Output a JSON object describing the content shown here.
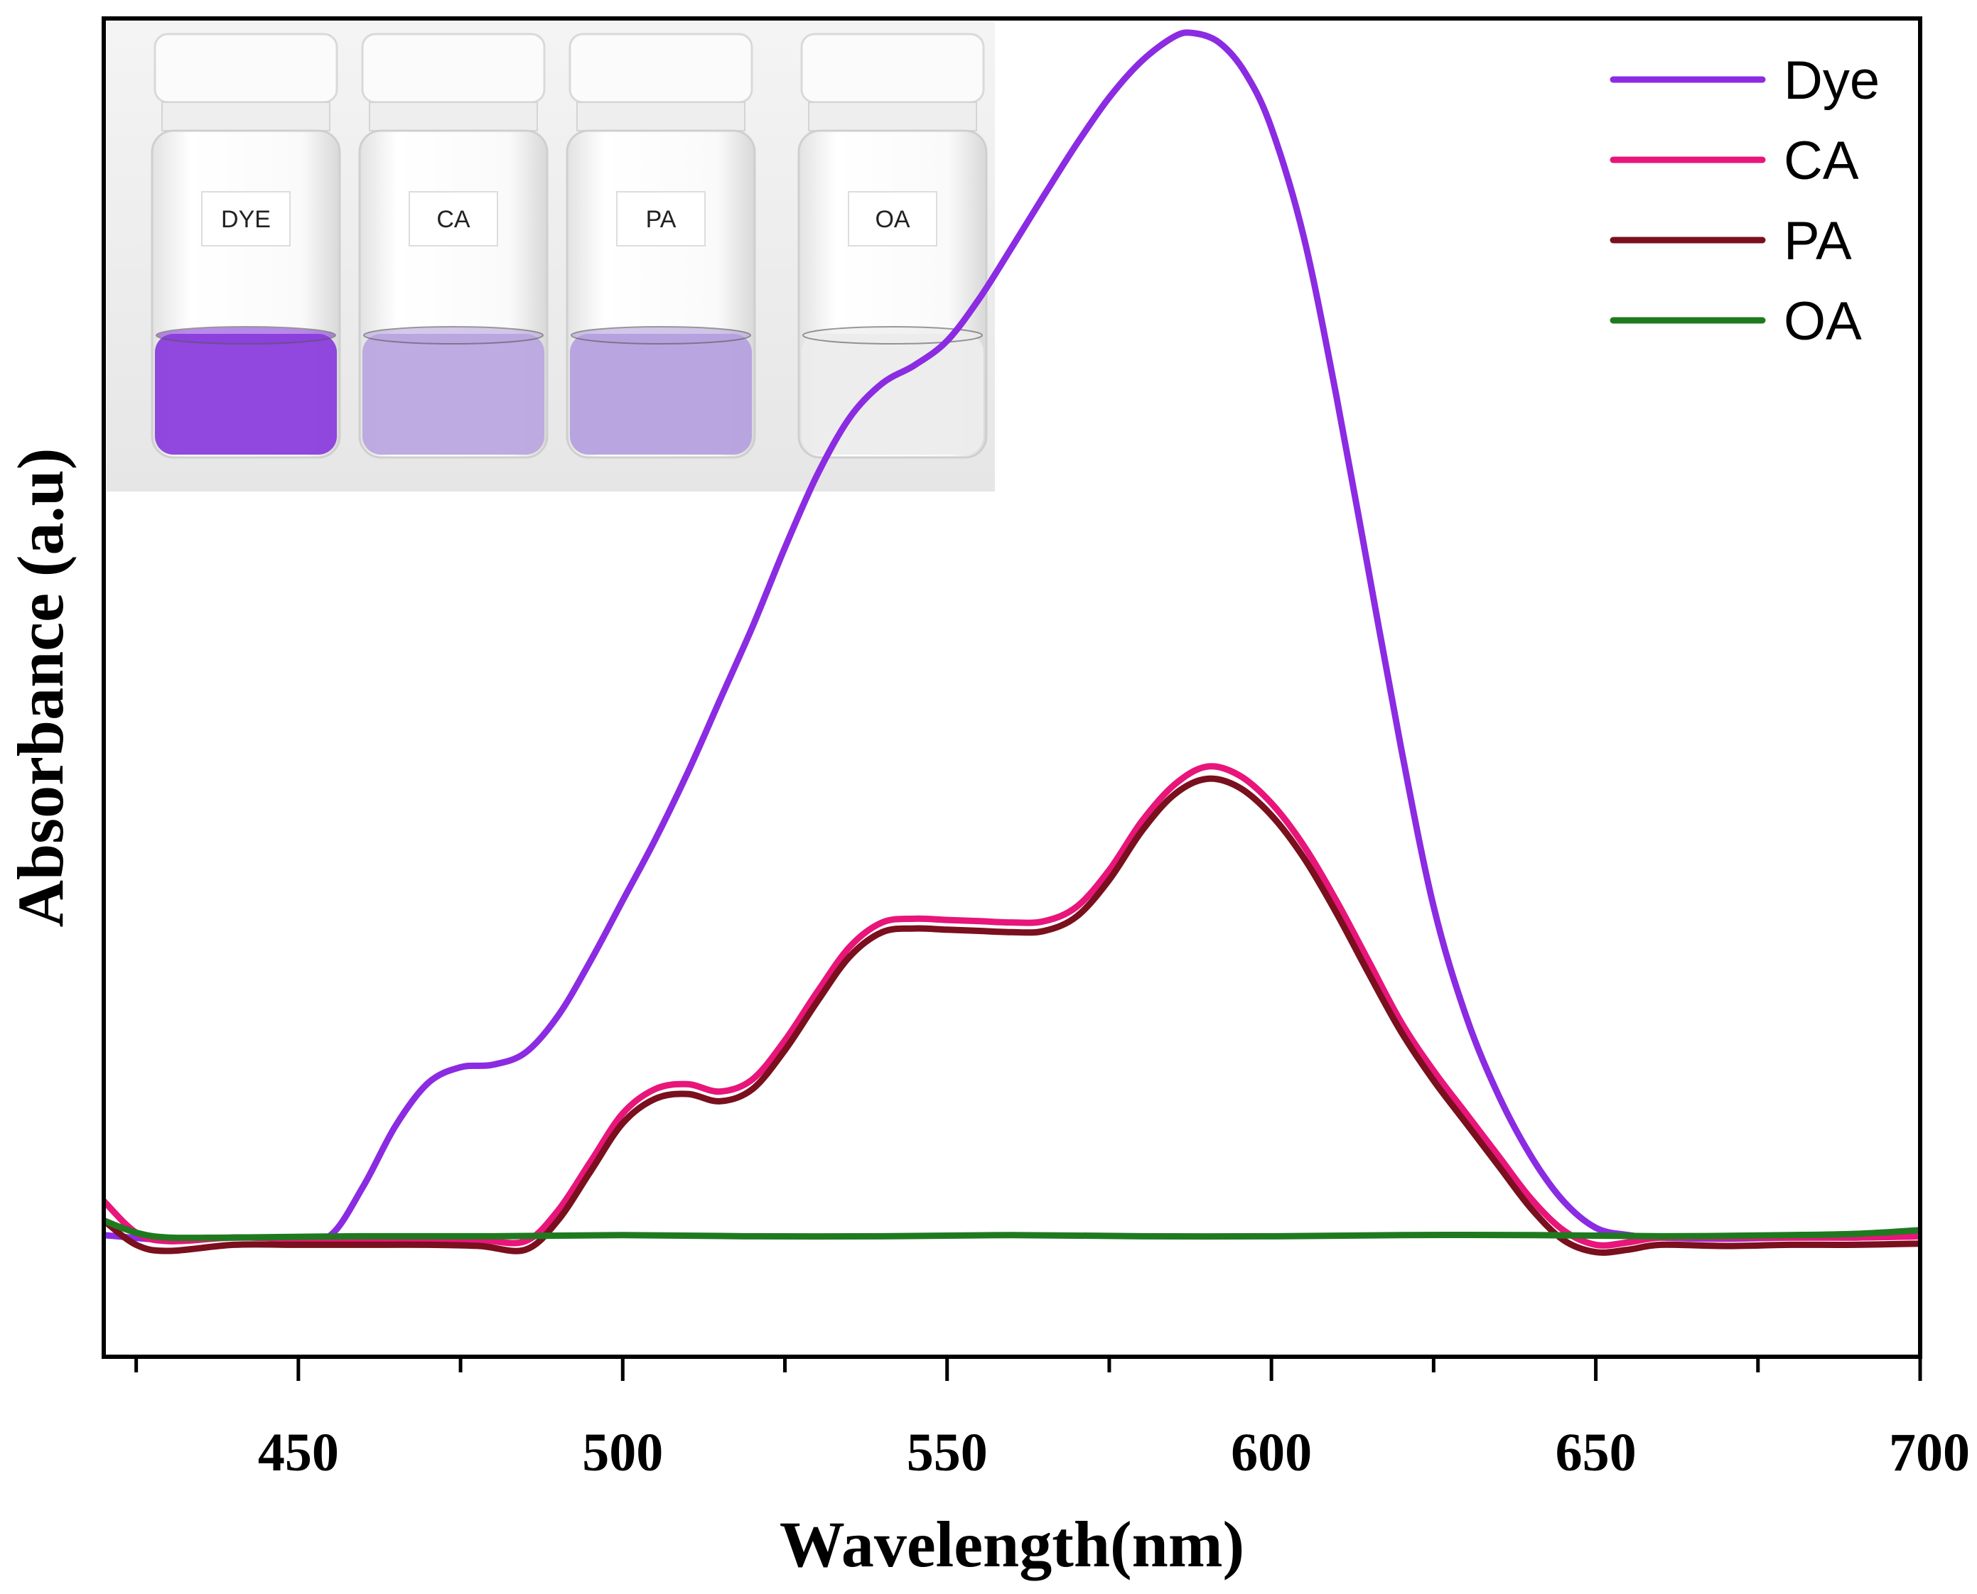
{
  "chart_data": {
    "type": "line",
    "title": "",
    "xlabel": "Wavelength(nm)",
    "ylabel": "Absorbance (a.u)",
    "xlim": [
      420,
      700
    ],
    "ylim": [
      -0.1,
      1.0
    ],
    "xticks": [
      450,
      500,
      550,
      600,
      650,
      700
    ],
    "x_minor_step": 25,
    "y_tick_labels": false,
    "legend": {
      "position": "top-right"
    },
    "series": [
      {
        "name": "Dye",
        "color": "#8B2BE2",
        "points": [
          [
            420,
            0.0
          ],
          [
            430,
            -0.004
          ],
          [
            440,
            -0.002
          ],
          [
            450,
            -0.002
          ],
          [
            455,
            0.0
          ],
          [
            460,
            0.04
          ],
          [
            465,
            0.09
          ],
          [
            470,
            0.125
          ],
          [
            475,
            0.138
          ],
          [
            480,
            0.14
          ],
          [
            485,
            0.15
          ],
          [
            490,
            0.18
          ],
          [
            495,
            0.225
          ],
          [
            500,
            0.275
          ],
          [
            505,
            0.325
          ],
          [
            510,
            0.38
          ],
          [
            515,
            0.44
          ],
          [
            520,
            0.5
          ],
          [
            525,
            0.565
          ],
          [
            530,
            0.625
          ],
          [
            535,
            0.672
          ],
          [
            540,
            0.7
          ],
          [
            545,
            0.715
          ],
          [
            550,
            0.735
          ],
          [
            555,
            0.77
          ],
          [
            560,
            0.812
          ],
          [
            565,
            0.855
          ],
          [
            570,
            0.897
          ],
          [
            575,
            0.935
          ],
          [
            580,
            0.965
          ],
          [
            585,
            0.985
          ],
          [
            588,
            0.988
          ],
          [
            592,
            0.98
          ],
          [
            596,
            0.955
          ],
          [
            600,
            0.91
          ],
          [
            605,
            0.82
          ],
          [
            610,
            0.69
          ],
          [
            615,
            0.545
          ],
          [
            620,
            0.4
          ],
          [
            625,
            0.27
          ],
          [
            630,
            0.18
          ],
          [
            635,
            0.115
          ],
          [
            640,
            0.065
          ],
          [
            645,
            0.028
          ],
          [
            650,
            0.006
          ],
          [
            655,
            0.0
          ],
          [
            660,
            -0.002
          ],
          [
            670,
            -0.003
          ],
          [
            680,
            -0.002
          ],
          [
            690,
            -0.002
          ],
          [
            700,
            -0.001
          ]
        ]
      },
      {
        "name": "CA",
        "color": "#E8157A",
        "points": [
          [
            420,
            0.028
          ],
          [
            425,
            0.002
          ],
          [
            430,
            -0.005
          ],
          [
            440,
            -0.002
          ],
          [
            450,
            -0.003
          ],
          [
            460,
            -0.003
          ],
          [
            470,
            -0.003
          ],
          [
            478,
            -0.004
          ],
          [
            485,
            -0.005
          ],
          [
            490,
            0.02
          ],
          [
            495,
            0.06
          ],
          [
            500,
            0.1
          ],
          [
            505,
            0.12
          ],
          [
            510,
            0.124
          ],
          [
            515,
            0.118
          ],
          [
            520,
            0.128
          ],
          [
            525,
            0.16
          ],
          [
            530,
            0.2
          ],
          [
            535,
            0.237
          ],
          [
            540,
            0.257
          ],
          [
            545,
            0.26
          ],
          [
            550,
            0.259
          ],
          [
            555,
            0.258
          ],
          [
            560,
            0.257
          ],
          [
            565,
            0.258
          ],
          [
            570,
            0.27
          ],
          [
            575,
            0.3
          ],
          [
            580,
            0.34
          ],
          [
            585,
            0.37
          ],
          [
            590,
            0.385
          ],
          [
            595,
            0.378
          ],
          [
            600,
            0.355
          ],
          [
            605,
            0.32
          ],
          [
            610,
            0.275
          ],
          [
            615,
            0.225
          ],
          [
            620,
            0.175
          ],
          [
            625,
            0.135
          ],
          [
            630,
            0.1
          ],
          [
            635,
            0.065
          ],
          [
            640,
            0.03
          ],
          [
            645,
            0.004
          ],
          [
            650,
            -0.008
          ],
          [
            655,
            -0.006
          ],
          [
            660,
            -0.002
          ],
          [
            670,
            -0.002
          ],
          [
            680,
            -0.002
          ],
          [
            690,
            -0.002
          ],
          [
            700,
            -0.001
          ]
        ]
      },
      {
        "name": "PA",
        "color": "#7A0F1E",
        "points": [
          [
            420,
            0.012
          ],
          [
            425,
            -0.008
          ],
          [
            430,
            -0.013
          ],
          [
            440,
            -0.008
          ],
          [
            450,
            -0.008
          ],
          [
            460,
            -0.008
          ],
          [
            470,
            -0.008
          ],
          [
            478,
            -0.009
          ],
          [
            485,
            -0.012
          ],
          [
            490,
            0.012
          ],
          [
            495,
            0.052
          ],
          [
            500,
            0.092
          ],
          [
            505,
            0.112
          ],
          [
            510,
            0.116
          ],
          [
            515,
            0.11
          ],
          [
            520,
            0.12
          ],
          [
            525,
            0.152
          ],
          [
            530,
            0.192
          ],
          [
            535,
            0.229
          ],
          [
            540,
            0.249
          ],
          [
            545,
            0.252
          ],
          [
            550,
            0.251
          ],
          [
            555,
            0.25
          ],
          [
            560,
            0.249
          ],
          [
            565,
            0.25
          ],
          [
            570,
            0.262
          ],
          [
            575,
            0.292
          ],
          [
            580,
            0.332
          ],
          [
            585,
            0.362
          ],
          [
            590,
            0.375
          ],
          [
            595,
            0.368
          ],
          [
            600,
            0.345
          ],
          [
            605,
            0.31
          ],
          [
            610,
            0.265
          ],
          [
            615,
            0.215
          ],
          [
            620,
            0.167
          ],
          [
            625,
            0.127
          ],
          [
            630,
            0.092
          ],
          [
            635,
            0.057
          ],
          [
            640,
            0.022
          ],
          [
            645,
            -0.004
          ],
          [
            650,
            -0.014
          ],
          [
            655,
            -0.012
          ],
          [
            660,
            -0.008
          ],
          [
            670,
            -0.009
          ],
          [
            680,
            -0.008
          ],
          [
            690,
            -0.008
          ],
          [
            700,
            -0.007
          ]
        ]
      },
      {
        "name": "OA",
        "color": "#1F7A1F",
        "points": [
          [
            420,
            0.012
          ],
          [
            425,
            0.002
          ],
          [
            430,
            -0.002
          ],
          [
            440,
            -0.002
          ],
          [
            460,
            -0.001
          ],
          [
            480,
            -0.001
          ],
          [
            500,
            0.0
          ],
          [
            520,
            -0.001
          ],
          [
            540,
            -0.001
          ],
          [
            560,
            0.0
          ],
          [
            580,
            -0.001
          ],
          [
            600,
            -0.001
          ],
          [
            620,
            0.0
          ],
          [
            640,
            0.0
          ],
          [
            660,
            -0.001
          ],
          [
            680,
            0.0
          ],
          [
            690,
            0.001
          ],
          [
            700,
            0.004
          ]
        ]
      }
    ],
    "inset": {
      "description_labels": [
        "DYE",
        "CA",
        "PA",
        "OA"
      ],
      "liquid_colors": [
        "#8A3EDD",
        "#B9A6E0",
        "#B5A1DE",
        "#ECECEC"
      ]
    }
  }
}
